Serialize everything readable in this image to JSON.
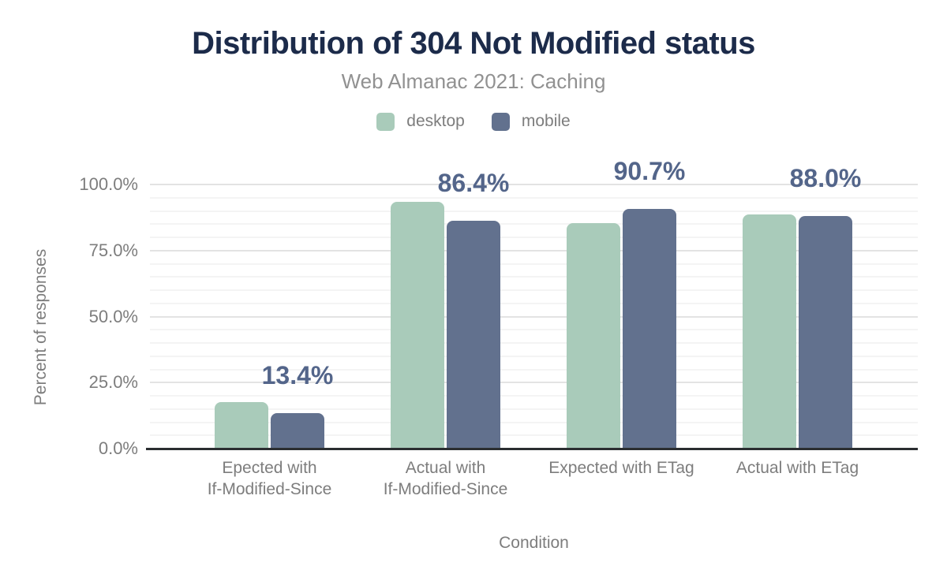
{
  "chart_data": {
    "type": "bar",
    "title": "Distribution of 304 Not Modified status",
    "subtitle": "Web Almanac 2021: Caching",
    "xlabel": "Condition",
    "ylabel": "Percent of responses",
    "categories": [
      [
        "Epected with",
        "If-Modified-Since"
      ],
      [
        "Actual with",
        "If-Modified-Since"
      ],
      [
        "Expected with ETag"
      ],
      [
        "Actual with ETag"
      ]
    ],
    "series": [
      {
        "name": "desktop",
        "color": "#a9cbba",
        "values": [
          17.7,
          93.3,
          85.3,
          88.6
        ]
      },
      {
        "name": "mobile",
        "color": "#62718e",
        "values": [
          13.4,
          86.4,
          90.7,
          88.0
        ]
      }
    ],
    "data_labels": [
      "13.4%",
      "86.4%",
      "90.7%",
      "88.0%"
    ],
    "data_labels_series": "mobile",
    "y_ticks": [
      {
        "value": 0,
        "label": "0.0%"
      },
      {
        "value": 25,
        "label": "25.0%"
      },
      {
        "value": 50,
        "label": "50.0%"
      },
      {
        "value": 75,
        "label": "75.0%"
      },
      {
        "value": 100,
        "label": "100.0%"
      }
    ],
    "ylim": [
      0,
      100
    ],
    "grid": {
      "major_step": 25,
      "minor_step": 5,
      "major_color": "#e3e3e3",
      "minor_color": "#f4f4f4"
    },
    "legend_position": "top",
    "colors": {
      "title": "#1c2b4a",
      "subtitle": "#919191",
      "axis_text": "#7d7d7d",
      "data_label": "#53658a",
      "axis_line": "#2b2e31",
      "background": "#ffffff"
    }
  }
}
